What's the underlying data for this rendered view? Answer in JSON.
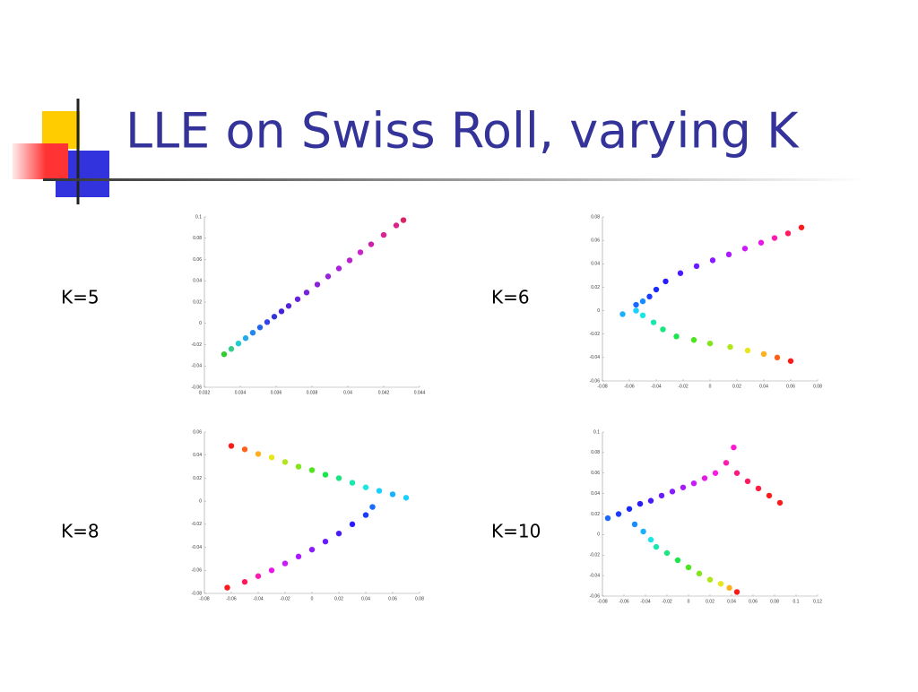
{
  "title": "LLE on Swiss Roll, varying K",
  "chart_data": [
    {
      "type": "scatter",
      "label": "K=5",
      "xlim": [
        0.032,
        0.044
      ],
      "ylim": [
        -0.06,
        0.1
      ],
      "xticks": [
        0.032,
        0.034,
        0.036,
        0.038,
        0.04,
        0.042,
        0.044
      ],
      "yticks": [
        -0.06,
        -0.04,
        -0.02,
        0,
        0.02,
        0.04,
        0.06,
        0.08,
        0.1
      ],
      "x": [
        0.0331,
        0.0335,
        0.0339,
        0.0343,
        0.0347,
        0.0351,
        0.0355,
        0.0359,
        0.0363,
        0.0367,
        0.0372,
        0.0377,
        0.0383,
        0.0389,
        0.0395,
        0.0401,
        0.0407,
        0.0413,
        0.042,
        0.0427,
        0.0431
      ],
      "y": [
        -0.029,
        -0.024,
        -0.0189,
        -0.0139,
        -0.0088,
        -0.0038,
        0.0012,
        0.0063,
        0.0113,
        0.0164,
        0.0227,
        0.029,
        0.0365,
        0.0441,
        0.0516,
        0.0592,
        0.0668,
        0.0743,
        0.0831,
        0.092,
        0.097
      ],
      "colors": [
        "#33cc33",
        "#33cc88",
        "#22cccc",
        "#22aaee",
        "#2288ee",
        "#2266ee",
        "#3344ee",
        "#3333dd",
        "#4422dd",
        "#5522dd",
        "#6622dd",
        "#7722dd",
        "#8822dd",
        "#9922dd",
        "#aa22dd",
        "#bb22cc",
        "#cc22cc",
        "#cc22aa",
        "#dd2299",
        "#dd2288",
        "#dd2266"
      ]
    },
    {
      "type": "scatter",
      "label": "K=6",
      "xlim": [
        -0.08,
        0.08
      ],
      "ylim": [
        -0.06,
        0.08
      ],
      "xticks": [
        -0.08,
        -0.06,
        -0.04,
        -0.02,
        0,
        0.02,
        0.04,
        0.06,
        0.08
      ],
      "yticks": [
        -0.06,
        -0.04,
        -0.02,
        0,
        0.02,
        0.04,
        0.06,
        0.08
      ],
      "x": [
        -0.045,
        -0.04,
        -0.033,
        -0.022,
        -0.01,
        0.002,
        0.014,
        0.026,
        0.038,
        0.048,
        0.058,
        0.068,
        -0.055,
        -0.05,
        -0.065,
        -0.055,
        -0.05,
        -0.042,
        -0.035,
        -0.025,
        -0.012,
        0.0,
        0.015,
        0.028,
        0.04,
        0.05,
        0.06
      ],
      "y": [
        0.012,
        0.018,
        0.025,
        0.032,
        0.038,
        0.043,
        0.048,
        0.053,
        0.058,
        0.062,
        0.066,
        0.071,
        0.005,
        0.008,
        -0.003,
        0.0,
        -0.004,
        -0.01,
        -0.016,
        -0.022,
        -0.025,
        -0.028,
        -0.031,
        -0.034,
        -0.037,
        -0.04,
        -0.043
      ],
      "colors": [
        "#1a3cff",
        "#1a2aff",
        "#2a1aff",
        "#4a1aff",
        "#6a1aff",
        "#8a1aff",
        "#aa1aff",
        "#cc1aff",
        "#e61ae6",
        "#ff1ab0",
        "#ff1a60",
        "#ff1a1a",
        "#1a6aff",
        "#1a8aff",
        "#1ab0ff",
        "#1ad0ff",
        "#1ae6e6",
        "#1ae6b0",
        "#1ae680",
        "#1ae64a",
        "#4ae61a",
        "#80e61a",
        "#b0e61a",
        "#e6e61a",
        "#ffb01a",
        "#ff601a",
        "#ff1a1a"
      ]
    },
    {
      "type": "scatter",
      "label": "K=8",
      "xlim": [
        -0.08,
        0.08
      ],
      "ylim": [
        -0.08,
        0.06
      ],
      "xticks": [
        -0.08,
        -0.06,
        -0.04,
        -0.02,
        0,
        0.02,
        0.04,
        0.06,
        0.08
      ],
      "yticks": [
        -0.08,
        -0.06,
        -0.04,
        -0.02,
        0,
        0.02,
        0.04,
        0.06
      ],
      "x": [
        -0.06,
        -0.05,
        -0.04,
        -0.03,
        -0.02,
        -0.01,
        0.0,
        0.01,
        0.02,
        0.03,
        0.04,
        0.05,
        0.06,
        0.07,
        0.045,
        0.04,
        0.03,
        0.02,
        0.01,
        0.0,
        -0.01,
        -0.02,
        -0.03,
        -0.04,
        -0.05,
        -0.063
      ],
      "y": [
        0.048,
        0.045,
        0.041,
        0.038,
        0.034,
        0.03,
        0.027,
        0.023,
        0.02,
        0.016,
        0.012,
        0.009,
        0.006,
        0.003,
        -0.005,
        -0.012,
        -0.02,
        -0.028,
        -0.035,
        -0.042,
        -0.048,
        -0.054,
        -0.06,
        -0.065,
        -0.07,
        -0.075
      ],
      "colors": [
        "#ff1a1a",
        "#ff601a",
        "#ffb01a",
        "#e6e61a",
        "#b0e61a",
        "#80e61a",
        "#4ae61a",
        "#1ae64a",
        "#1ae680",
        "#1ae6b0",
        "#1ae6e6",
        "#1ad0ff",
        "#1ab0ff",
        "#1ad0ff",
        "#1a6aff",
        "#1a3cff",
        "#2a1aff",
        "#4a1aff",
        "#6a1aff",
        "#8a1aff",
        "#aa1aff",
        "#cc1aff",
        "#e61ae6",
        "#ff1ab0",
        "#ff1a60",
        "#ff1a1a"
      ]
    },
    {
      "type": "scatter",
      "label": "K=10",
      "xlim": [
        -0.08,
        0.12
      ],
      "ylim": [
        -0.06,
        0.1
      ],
      "xticks": [
        -0.08,
        -0.06,
        -0.04,
        -0.02,
        0,
        0.02,
        0.04,
        0.06,
        0.08,
        0.1,
        0.12
      ],
      "yticks": [
        -0.06,
        -0.04,
        -0.02,
        0,
        0.02,
        0.04,
        0.06,
        0.08,
        0.1
      ],
      "x": [
        -0.075,
        -0.065,
        -0.055,
        -0.045,
        -0.035,
        -0.025,
        -0.015,
        -0.005,
        0.005,
        0.015,
        0.025,
        0.035,
        0.042,
        0.045,
        0.055,
        0.065,
        0.075,
        0.085,
        -0.05,
        -0.042,
        -0.035,
        -0.03,
        -0.02,
        -0.01,
        0.0,
        0.01,
        0.02,
        0.03,
        0.038,
        0.045
      ],
      "y": [
        0.016,
        0.02,
        0.025,
        0.03,
        0.033,
        0.038,
        0.042,
        0.046,
        0.05,
        0.055,
        0.06,
        0.07,
        0.085,
        0.06,
        0.052,
        0.045,
        0.038,
        0.031,
        0.01,
        0.003,
        -0.005,
        -0.012,
        -0.018,
        -0.025,
        -0.032,
        -0.038,
        -0.044,
        -0.048,
        -0.052,
        -0.056
      ],
      "colors": [
        "#1a6aff",
        "#1a3cff",
        "#1a2aff",
        "#2a1aff",
        "#4a1aff",
        "#6a1aff",
        "#8a1aff",
        "#aa1aff",
        "#cc1aff",
        "#e61ae6",
        "#ff1ae6",
        "#ff1ab0",
        "#ff1ad0",
        "#ff1a80",
        "#ff1a60",
        "#ff1a40",
        "#ff1a1a",
        "#ff1a1a",
        "#1a8aff",
        "#1ab0ff",
        "#1ae6e6",
        "#1ae6b0",
        "#1ae680",
        "#1ae64a",
        "#4ae61a",
        "#80e61a",
        "#b0e61a",
        "#e6e61a",
        "#ffb01a",
        "#ff1a1a"
      ]
    }
  ]
}
